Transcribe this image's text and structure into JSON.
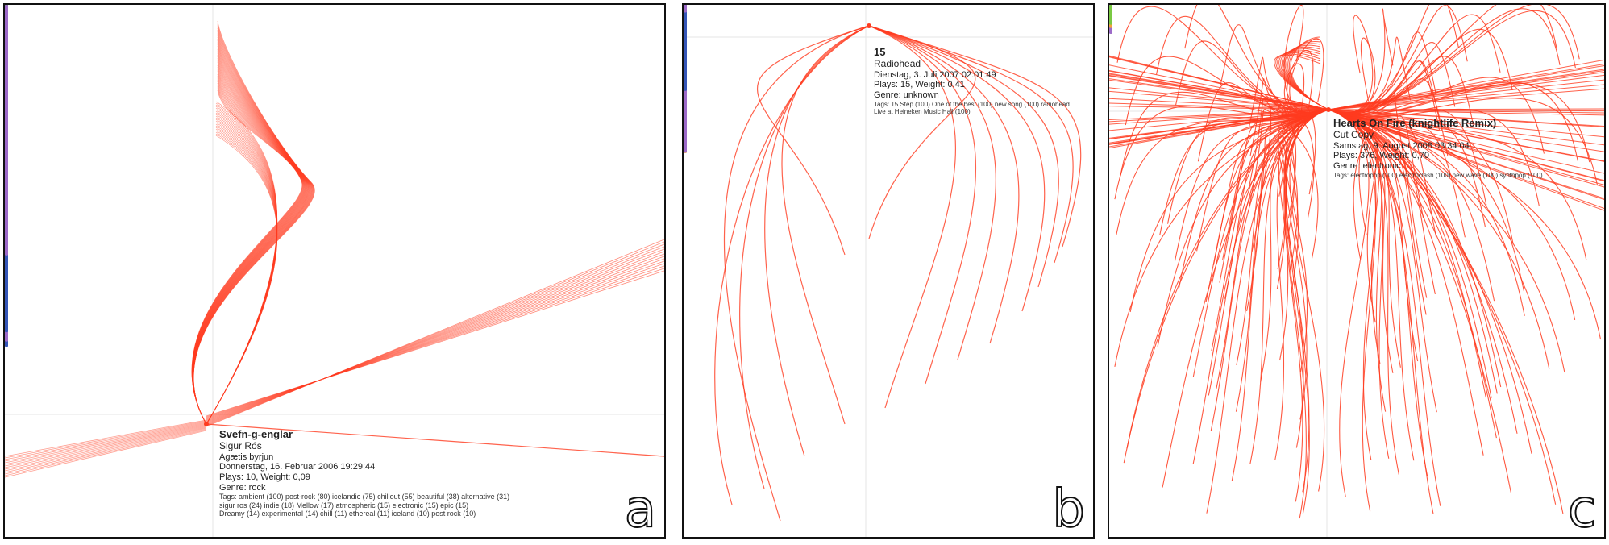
{
  "colors": {
    "edge": "#ff3b1f",
    "purple": "#9d6ac9",
    "blue": "#3556b8",
    "green": "#7ac943",
    "orange": "#f2a33a",
    "gray": "#b8b8c0",
    "frame": "#111111"
  },
  "panels": [
    {
      "letter": "a",
      "info": {
        "title": "Svefn-g-englar",
        "artist": "Sigur Rós",
        "album": "Agætis byrjun",
        "date": "Donnerstag, 16. Februar 2006 19:29:44",
        "plays": "Plays: 10, Weight: 0,09",
        "genre": "Genre: rock",
        "tags": [
          "Tags: ambient (100) post-rock (80) icelandic (75) chillout (55) beautiful (38) alternative (31)",
          "sigur ros (24) indie (18) Mellow (17) atmospheric (15) electronic (15) epic (15)",
          "Dreamy (14) experimental (14) chill (11) ethereal (11) iceland (10) post rock (10)"
        ]
      }
    },
    {
      "letter": "b",
      "info": {
        "title": "15",
        "artist": "Radiohead",
        "date": "Dienstag, 3. Juli 2007 02:01:49",
        "plays": "Plays: 15, Weight: 0,41",
        "genre": "Genre: unknown",
        "tags": [
          "Tags: 15 Step (100) One of the best (100) new song (100) radiohead",
          "Live at Heineken Music Hall (100)"
        ]
      }
    },
    {
      "letter": "c",
      "info": {
        "title": "Hearts On Fire (knightlife Remix)",
        "artist": "Cut Copy",
        "date": "Samstag, 9. August 2008 03:34:04",
        "plays": "Plays: 376, Weight: 0,70",
        "genre": "Genre: electronic",
        "tags": [
          "Tags: electropop (100) electroclash (100) new wave (100) synthpop (100) ..."
        ]
      }
    }
  ]
}
